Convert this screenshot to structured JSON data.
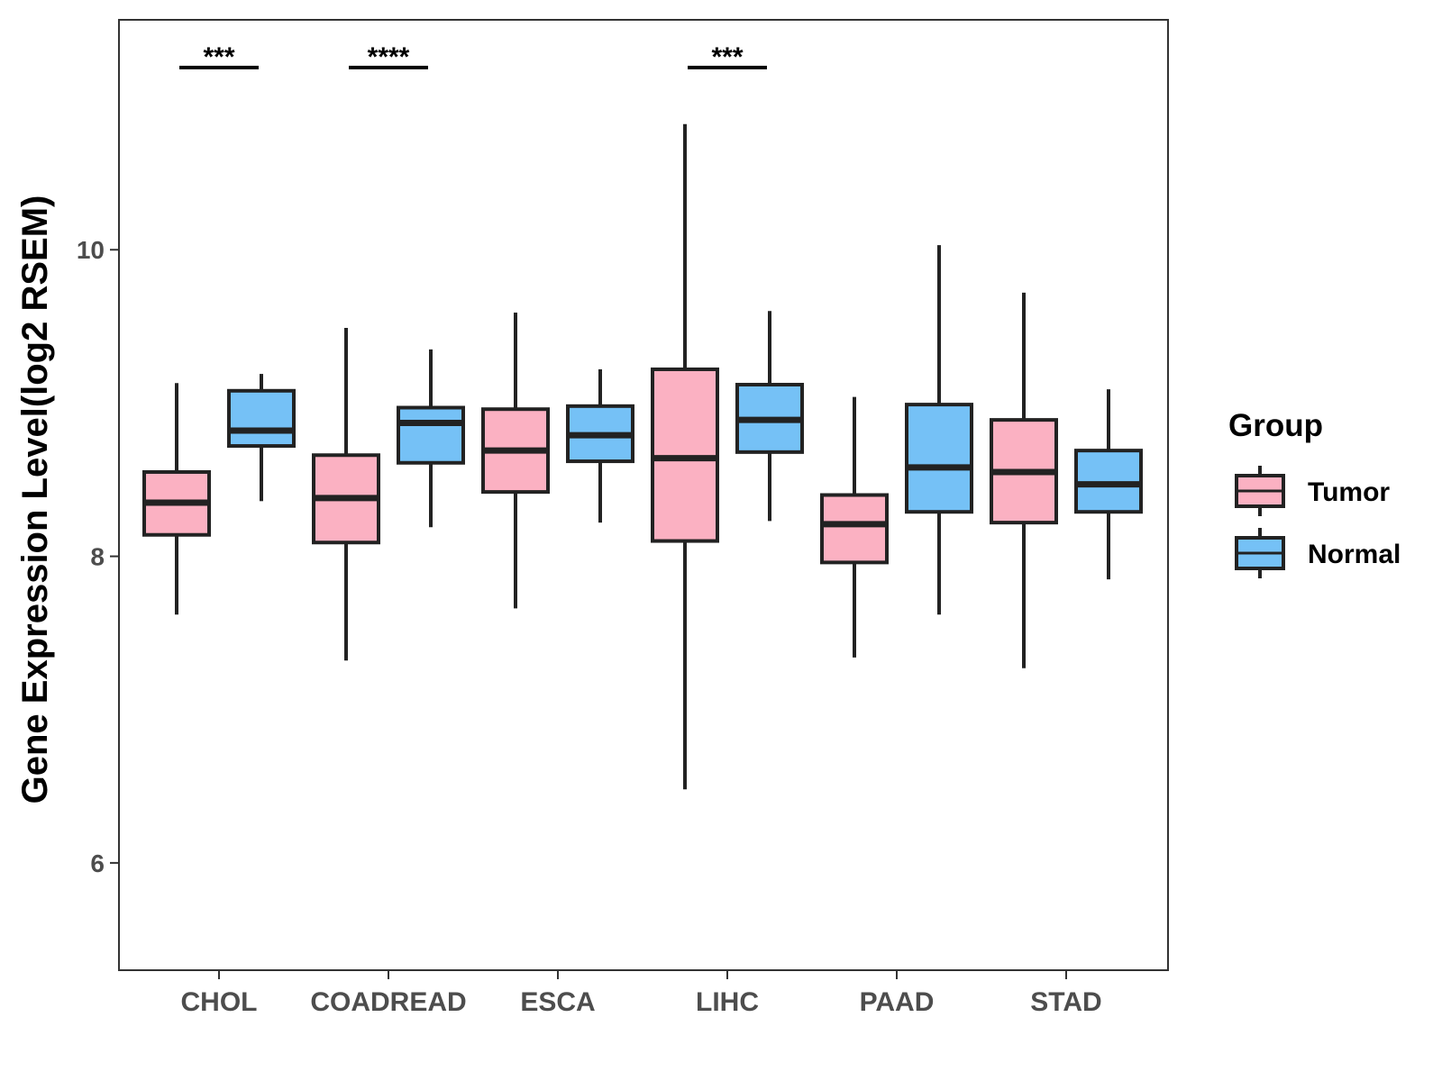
{
  "chart_data": {
    "type": "boxplot",
    "title": "",
    "xlabel": "",
    "ylabel": "Gene Expression Level(log2 RSEM)",
    "ylim": [
      5.3,
      11.5
    ],
    "yticks": [
      6,
      8,
      10
    ],
    "categories": [
      "CHOL",
      "COADREAD",
      "ESCA",
      "LIHC",
      "PAAD",
      "STAD"
    ],
    "legend": {
      "title": "Group",
      "position": "right",
      "entries": [
        {
          "name": "Tumor",
          "color": "#fbb1c2"
        },
        {
          "name": "Normal",
          "color": "#75c1f6"
        }
      ]
    },
    "series": [
      {
        "name": "Tumor",
        "color": "#fbb1c2",
        "boxes": [
          {
            "category": "CHOL",
            "min": 7.62,
            "q1": 8.14,
            "median": 8.35,
            "q3": 8.55,
            "max": 9.13
          },
          {
            "category": "COADREAD",
            "min": 7.32,
            "q1": 8.09,
            "median": 8.38,
            "q3": 8.66,
            "max": 9.49
          },
          {
            "category": "ESCA",
            "min": 7.66,
            "q1": 8.42,
            "median": 8.69,
            "q3": 8.96,
            "max": 9.59
          },
          {
            "category": "LIHC",
            "min": 6.48,
            "q1": 8.1,
            "median": 8.64,
            "q3": 9.22,
            "max": 10.82
          },
          {
            "category": "PAAD",
            "min": 7.34,
            "q1": 7.96,
            "median": 8.21,
            "q3": 8.4,
            "max": 9.04
          },
          {
            "category": "STAD",
            "min": 7.27,
            "q1": 8.22,
            "median": 8.55,
            "q3": 8.89,
            "max": 9.72
          }
        ]
      },
      {
        "name": "Normal",
        "color": "#75c1f6",
        "boxes": [
          {
            "category": "CHOL",
            "min": 8.36,
            "q1": 8.72,
            "median": 8.82,
            "q3": 9.08,
            "max": 9.19
          },
          {
            "category": "COADREAD",
            "min": 8.19,
            "q1": 8.61,
            "median": 8.87,
            "q3": 8.97,
            "max": 9.35
          },
          {
            "category": "ESCA",
            "min": 8.22,
            "q1": 8.62,
            "median": 8.79,
            "q3": 8.98,
            "max": 9.22
          },
          {
            "category": "LIHC",
            "min": 8.23,
            "q1": 8.68,
            "median": 8.89,
            "q3": 9.12,
            "max": 9.6
          },
          {
            "category": "PAAD",
            "min": 7.62,
            "q1": 8.29,
            "median": 8.58,
            "q3": 8.99,
            "max": 10.03
          },
          {
            "category": "STAD",
            "min": 7.85,
            "q1": 8.29,
            "median": 8.47,
            "q3": 8.69,
            "max": 9.09
          }
        ]
      }
    ],
    "significance": [
      {
        "category": "CHOL",
        "label": "***"
      },
      {
        "category": "COADREAD",
        "label": "****"
      },
      {
        "category": "LIHC",
        "label": "***"
      }
    ]
  }
}
